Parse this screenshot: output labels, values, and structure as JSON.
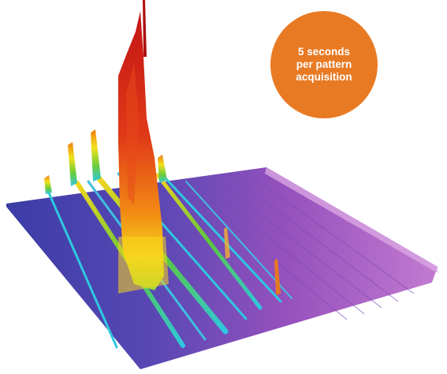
{
  "image": {
    "subject": "3D surface plot of diffraction pattern peaks",
    "badge": {
      "lines": [
        "5 seconds",
        "per pattern",
        "acquisition"
      ],
      "color": "#e87a24",
      "text_color": "#ffffff"
    },
    "palette": {
      "base_blue": "#3d3fa8",
      "base_violet": "#8a4fb8",
      "base_magenta": "#b05fc4",
      "peak_red": "#c81414",
      "peak_orange": "#f07c12",
      "peak_yellow": "#f2e21c",
      "peak_green": "#5cc83a",
      "peak_cyan": "#2ec8e0"
    }
  }
}
